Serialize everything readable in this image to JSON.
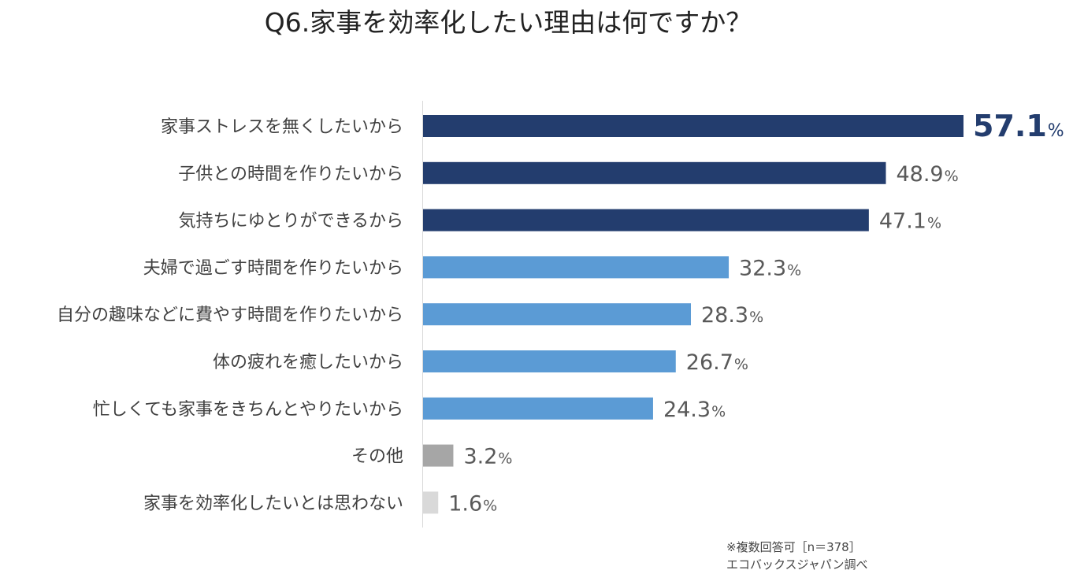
{
  "chart_data": {
    "type": "bar",
    "orientation": "horizontal",
    "title": "Q6.家事を効率化したい理由は何ですか？",
    "xlim": [
      0,
      57.1
    ],
    "grid": false,
    "unit": "%",
    "categories": [
      "家事ストレスを無くしたいから",
      "子供との時間を作りたいから",
      "気持ちにゆとりができるから",
      "夫婦で過ごす時間を作りたいから",
      "自分の趣味などに費やす時間を作りたいから",
      "体の疲れを癒したいから",
      "忙しくても家事をきちんとやりたいから",
      "その他",
      "家事を効率化したいとは思わない"
    ],
    "values": [
      57.1,
      48.9,
      47.1,
      32.3,
      28.3,
      26.7,
      24.3,
      3.2,
      1.6
    ],
    "value_labels": [
      "57.1",
      "48.9",
      "47.1",
      "32.3",
      "28.3",
      "26.7",
      "24.3",
      "3.2",
      "1.6"
    ],
    "bar_colors": [
      "#233d6e",
      "#233d6e",
      "#233d6e",
      "#5b9bd5",
      "#5b9bd5",
      "#5b9bd5",
      "#5b9bd5",
      "#a6a6a6",
      "#d9d9d9"
    ],
    "highlight_label_color": "#233d6e",
    "label_color": "#595959"
  },
  "notes": {
    "line1": "※複数回答可［n＝378］",
    "line2": "エコバックスジャパン調べ"
  }
}
